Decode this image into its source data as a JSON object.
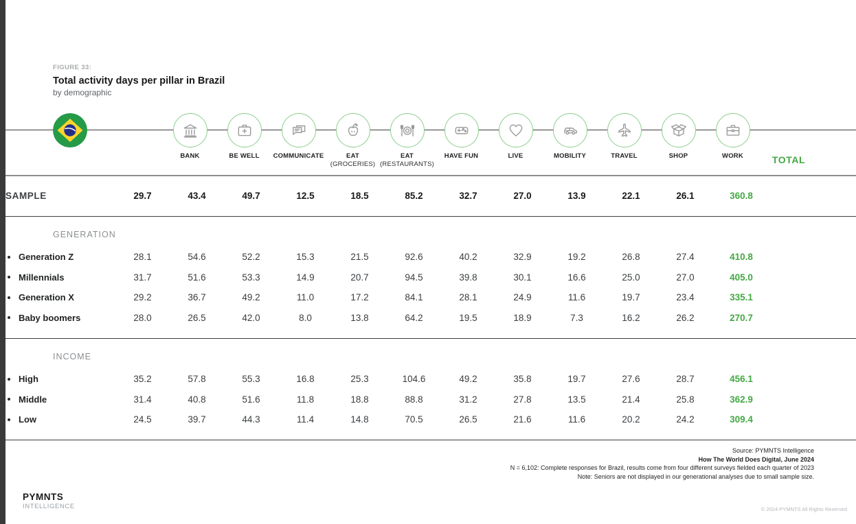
{
  "figure": {
    "label": "FIGURE 33:",
    "title": "Total activity days per pillar in Brazil",
    "subtitle": "by demographic"
  },
  "colors": {
    "accent_green": "#43a843",
    "circle_green": "#8bce8b",
    "flag_green": "#259b48",
    "flag_yellow": "#fdd42c",
    "flag_blue": "#232f8b"
  },
  "table": {
    "columns": [
      {
        "label": "BANK",
        "sublabel": "",
        "icon": "bank-icon"
      },
      {
        "label": "BE WELL",
        "sublabel": "",
        "icon": "first-aid-icon"
      },
      {
        "label": "COMMUNICATE",
        "sublabel": "",
        "icon": "chat-icon"
      },
      {
        "label": "EAT",
        "sublabel": "(GROCERIES)",
        "icon": "apple-icon"
      },
      {
        "label": "EAT",
        "sublabel": "(RESTAURANTS)",
        "icon": "plate-icon"
      },
      {
        "label": "HAVE FUN",
        "sublabel": "",
        "icon": "game-controller-icon"
      },
      {
        "label": "LIVE",
        "sublabel": "",
        "icon": "heart-icon"
      },
      {
        "label": "MOBILITY",
        "sublabel": "",
        "icon": "car-icon"
      },
      {
        "label": "TRAVEL",
        "sublabel": "",
        "icon": "airplane-icon"
      },
      {
        "label": "SHOP",
        "sublabel": "",
        "icon": "open-box-icon"
      },
      {
        "label": "WORK",
        "sublabel": "",
        "icon": "briefcase-icon"
      }
    ],
    "total_label": "TOTAL",
    "sample_rows": [
      {
        "label": "SAMPLE",
        "values": [
          "29.7",
          "43.4",
          "49.7",
          "12.5",
          "18.5",
          "85.2",
          "32.7",
          "27.0",
          "13.9",
          "22.1",
          "26.1"
        ],
        "total": "360.8"
      }
    ],
    "sections": [
      {
        "label": "GENERATION",
        "rows": [
          {
            "label": "Generation Z",
            "values": [
              "28.1",
              "54.6",
              "52.2",
              "15.3",
              "21.5",
              "92.6",
              "40.2",
              "32.9",
              "19.2",
              "26.8",
              "27.4"
            ],
            "total": "410.8"
          },
          {
            "label": "Millennials",
            "values": [
              "31.7",
              "51.6",
              "53.3",
              "14.9",
              "20.7",
              "94.5",
              "39.8",
              "30.1",
              "16.6",
              "25.0",
              "27.0"
            ],
            "total": "405.0"
          },
          {
            "label": "Generation X",
            "values": [
              "29.2",
              "36.7",
              "49.2",
              "11.0",
              "17.2",
              "84.1",
              "28.1",
              "24.9",
              "11.6",
              "19.7",
              "23.4"
            ],
            "total": "335.1"
          },
          {
            "label": "Baby boomers",
            "values": [
              "28.0",
              "26.5",
              "42.0",
              "8.0",
              "13.8",
              "64.2",
              "19.5",
              "18.9",
              "7.3",
              "16.2",
              "26.2"
            ],
            "total": "270.7"
          }
        ]
      },
      {
        "label": "INCOME",
        "rows": [
          {
            "label": "High",
            "values": [
              "35.2",
              "57.8",
              "55.3",
              "16.8",
              "25.3",
              "104.6",
              "49.2",
              "35.8",
              "19.7",
              "27.6",
              "28.7"
            ],
            "total": "456.1"
          },
          {
            "label": "Middle",
            "values": [
              "31.4",
              "40.8",
              "51.6",
              "11.8",
              "18.8",
              "88.8",
              "31.2",
              "27.8",
              "13.5",
              "21.4",
              "25.8"
            ],
            "total": "362.9"
          },
          {
            "label": "Low",
            "values": [
              "24.5",
              "39.7",
              "44.3",
              "11.4",
              "14.8",
              "70.5",
              "26.5",
              "21.6",
              "11.6",
              "20.2",
              "24.2"
            ],
            "total": "309.4"
          }
        ]
      }
    ]
  },
  "footer": {
    "source_line1": "Source: PYMNTS Intelligence",
    "source_line2": "How The World Does Digital, June 2024",
    "note_line1": "N = 6,102: Complete responses for Brazil, results come from four different surveys fielded each quarter of 2023",
    "note_line2": "Note: Seniors are not displayed in our generational analyses due to small sample size."
  },
  "branding": {
    "logo_line1": "PYMNTS",
    "logo_line2": "INTELLIGENCE",
    "copyright": "© 2024 PYMNTS All Rights Reserved"
  },
  "chart_data": {
    "type": "table",
    "title": "Total activity days per pillar in Brazil",
    "subtitle": "by demographic",
    "columns": [
      "Bank",
      "Be well",
      "Communicate",
      "Eat (groceries)",
      "Eat (restaurants)",
      "Have fun",
      "Live",
      "Mobility",
      "Travel",
      "Shop",
      "Work",
      "Total"
    ],
    "rows": [
      {
        "group": "Sample",
        "label": "Sample",
        "values": [
          29.7,
          43.4,
          49.7,
          12.5,
          18.5,
          85.2,
          32.7,
          27.0,
          13.9,
          22.1,
          26.1,
          360.8
        ]
      },
      {
        "group": "Generation",
        "label": "Generation Z",
        "values": [
          28.1,
          54.6,
          52.2,
          15.3,
          21.5,
          92.6,
          40.2,
          32.9,
          19.2,
          26.8,
          27.4,
          410.8
        ]
      },
      {
        "group": "Generation",
        "label": "Millennials",
        "values": [
          31.7,
          51.6,
          53.3,
          14.9,
          20.7,
          94.5,
          39.8,
          30.1,
          16.6,
          25.0,
          27.0,
          405.0
        ]
      },
      {
        "group": "Generation",
        "label": "Generation X",
        "values": [
          29.2,
          36.7,
          49.2,
          11.0,
          17.2,
          84.1,
          28.1,
          24.9,
          11.6,
          19.7,
          23.4,
          335.1
        ]
      },
      {
        "group": "Generation",
        "label": "Baby boomers",
        "values": [
          28.0,
          26.5,
          42.0,
          8.0,
          13.8,
          64.2,
          19.5,
          18.9,
          7.3,
          16.2,
          26.2,
          270.7
        ]
      },
      {
        "group": "Income",
        "label": "High",
        "values": [
          35.2,
          57.8,
          55.3,
          16.8,
          25.3,
          104.6,
          49.2,
          35.8,
          19.7,
          27.6,
          28.7,
          456.1
        ]
      },
      {
        "group": "Income",
        "label": "Middle",
        "values": [
          31.4,
          40.8,
          51.6,
          11.8,
          18.8,
          88.8,
          31.2,
          27.8,
          13.5,
          21.4,
          25.8,
          362.9
        ]
      },
      {
        "group": "Income",
        "label": "Low",
        "values": [
          24.5,
          39.7,
          44.3,
          11.4,
          14.8,
          70.5,
          26.5,
          21.6,
          11.6,
          20.2,
          24.2,
          309.4
        ]
      }
    ]
  }
}
